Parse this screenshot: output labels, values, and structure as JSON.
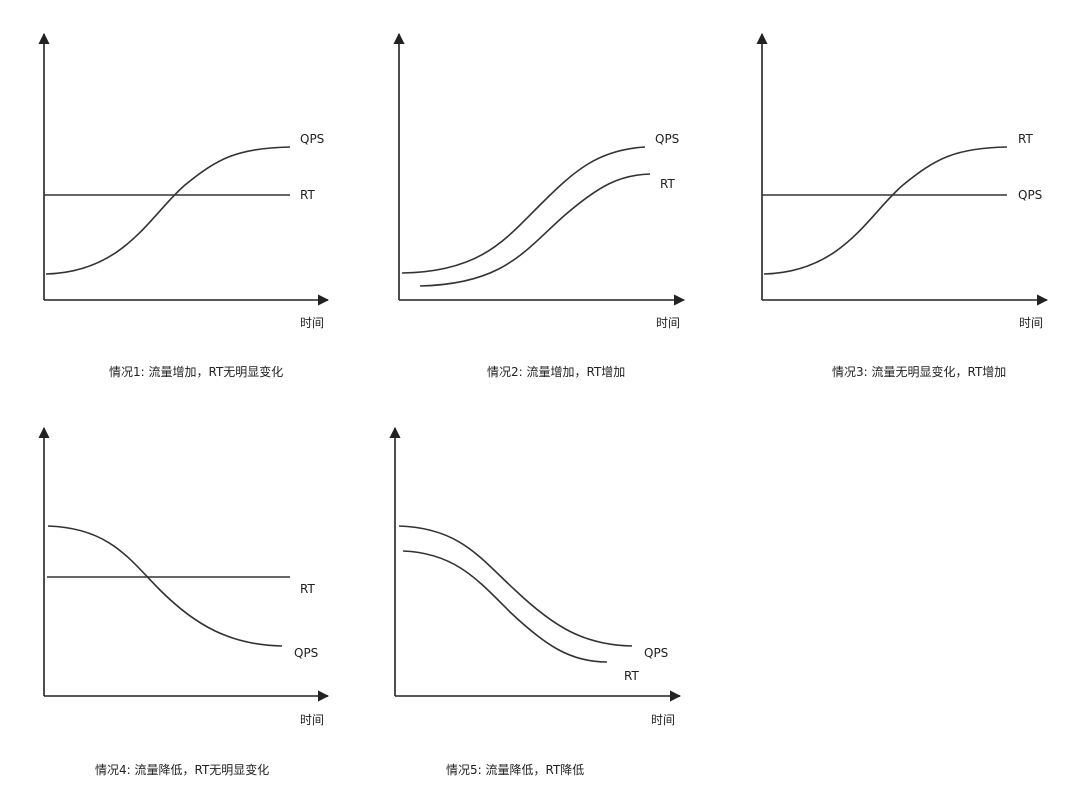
{
  "axis_label": "时间",
  "chart_data": [
    {
      "type": "line",
      "caption": "情况1: 流量增加，RT无明显变化",
      "series": [
        {
          "name": "QPS",
          "trend": "increase"
        },
        {
          "name": "RT",
          "trend": "flat"
        }
      ]
    },
    {
      "type": "line",
      "caption": "情况2: 流量增加，RT增加",
      "series": [
        {
          "name": "QPS",
          "trend": "increase"
        },
        {
          "name": "RT",
          "trend": "increase"
        }
      ]
    },
    {
      "type": "line",
      "caption": "情况3: 流量无明显变化，RT增加",
      "series": [
        {
          "name": "RT",
          "trend": "increase"
        },
        {
          "name": "QPS",
          "trend": "flat"
        }
      ]
    },
    {
      "type": "line",
      "caption": "情况4: 流量降低，RT无明显变化",
      "series": [
        {
          "name": "RT",
          "trend": "flat"
        },
        {
          "name": "QPS",
          "trend": "decrease"
        }
      ]
    },
    {
      "type": "line",
      "caption": "情况5: 流量降低，RT降低",
      "series": [
        {
          "name": "QPS",
          "trend": "decrease"
        },
        {
          "name": "RT",
          "trend": "decrease"
        }
      ]
    }
  ]
}
